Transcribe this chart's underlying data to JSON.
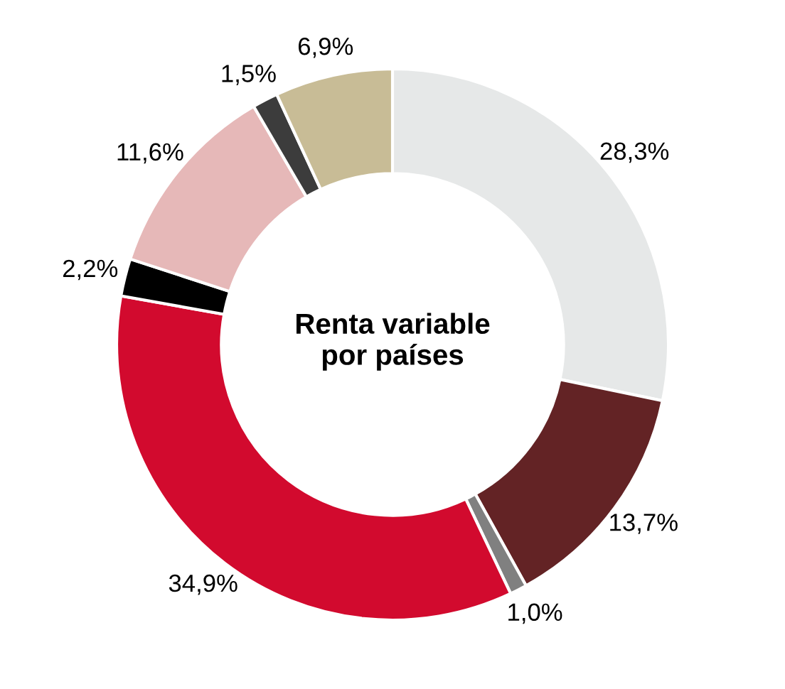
{
  "chart_data": {
    "type": "donut",
    "title": "Renta variable\npor países",
    "categories": [
      null,
      null,
      null,
      null,
      null,
      null,
      null,
      null
    ],
    "values": [
      28.3,
      13.7,
      1.0,
      34.9,
      2.2,
      11.6,
      1.5,
      6.9
    ],
    "value_labels": [
      "28,3%",
      "13,7%",
      "1,0%",
      "34,9%",
      "2,2%",
      "11,6%",
      "1,5%",
      "6,9%"
    ],
    "colors": [
      "#e6e8e8",
      "#632325",
      "#808080",
      "#d20a2e",
      "#000000",
      "#e6b8b8",
      "#3c3c3c",
      "#c8bc96"
    ],
    "legend": false
  }
}
